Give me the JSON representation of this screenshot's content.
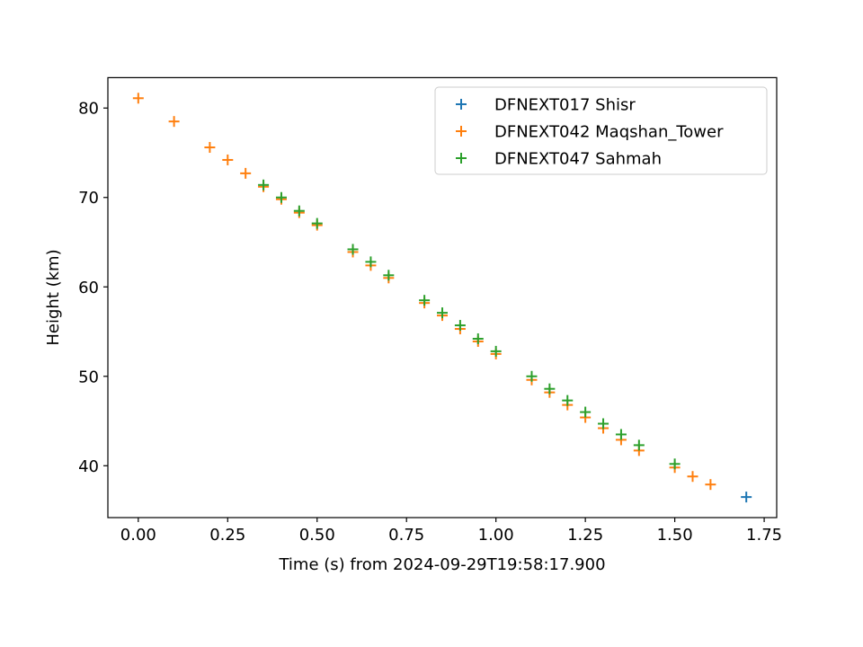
{
  "chart_data": {
    "type": "scatter",
    "title": "",
    "xlabel": "Time (s) from 2024-09-29T19:58:17.900",
    "ylabel": "Height (km)",
    "xlim": [
      -0.085,
      1.785
    ],
    "ylim": [
      34.2,
      83.4
    ],
    "xticks": [
      0.0,
      0.25,
      0.5,
      0.75,
      1.0,
      1.25,
      1.5,
      1.75
    ],
    "xtick_labels": [
      "0.00",
      "0.25",
      "0.50",
      "0.75",
      "1.00",
      "1.25",
      "1.50",
      "1.75"
    ],
    "yticks": [
      40,
      50,
      60,
      70,
      80
    ],
    "ytick_labels": [
      "40",
      "50",
      "60",
      "70",
      "80"
    ],
    "grid": false,
    "legend_position": "top-right",
    "marker": "+",
    "series": [
      {
        "name": "DFNEXT017 Shisr",
        "color": "#1f77b4",
        "x": [
          1.7
        ],
        "y": [
          36.5
        ]
      },
      {
        "name": "DFNEXT042 Maqshan_Tower",
        "color": "#ff7f0e",
        "x": [
          0.0,
          0.1,
          0.2,
          0.25,
          0.3,
          0.35,
          0.4,
          0.45,
          0.5,
          0.6,
          0.65,
          0.7,
          0.8,
          0.85,
          0.9,
          0.95,
          1.0,
          1.1,
          1.15,
          1.2,
          1.25,
          1.3,
          1.35,
          1.4,
          1.5,
          1.55,
          1.6
        ],
        "y": [
          81.1,
          78.5,
          75.6,
          74.2,
          72.7,
          71.2,
          69.8,
          68.3,
          66.9,
          63.9,
          62.4,
          61.0,
          58.2,
          56.8,
          55.3,
          53.9,
          52.5,
          49.6,
          48.2,
          46.8,
          45.4,
          44.2,
          42.9,
          41.7,
          39.8,
          38.8,
          37.9
        ]
      },
      {
        "name": "DFNEXT047 Sahmah",
        "color": "#2ca02c",
        "x": [
          0.35,
          0.4,
          0.45,
          0.5,
          0.6,
          0.65,
          0.7,
          0.8,
          0.85,
          0.9,
          0.95,
          1.0,
          1.1,
          1.15,
          1.2,
          1.25,
          1.3,
          1.35,
          1.4,
          1.5
        ],
        "y": [
          71.4,
          70.0,
          68.5,
          67.1,
          64.2,
          62.8,
          61.3,
          58.5,
          57.1,
          55.7,
          54.2,
          52.8,
          50.0,
          48.6,
          47.3,
          46.0,
          44.7,
          43.5,
          42.3,
          40.2
        ]
      }
    ]
  }
}
